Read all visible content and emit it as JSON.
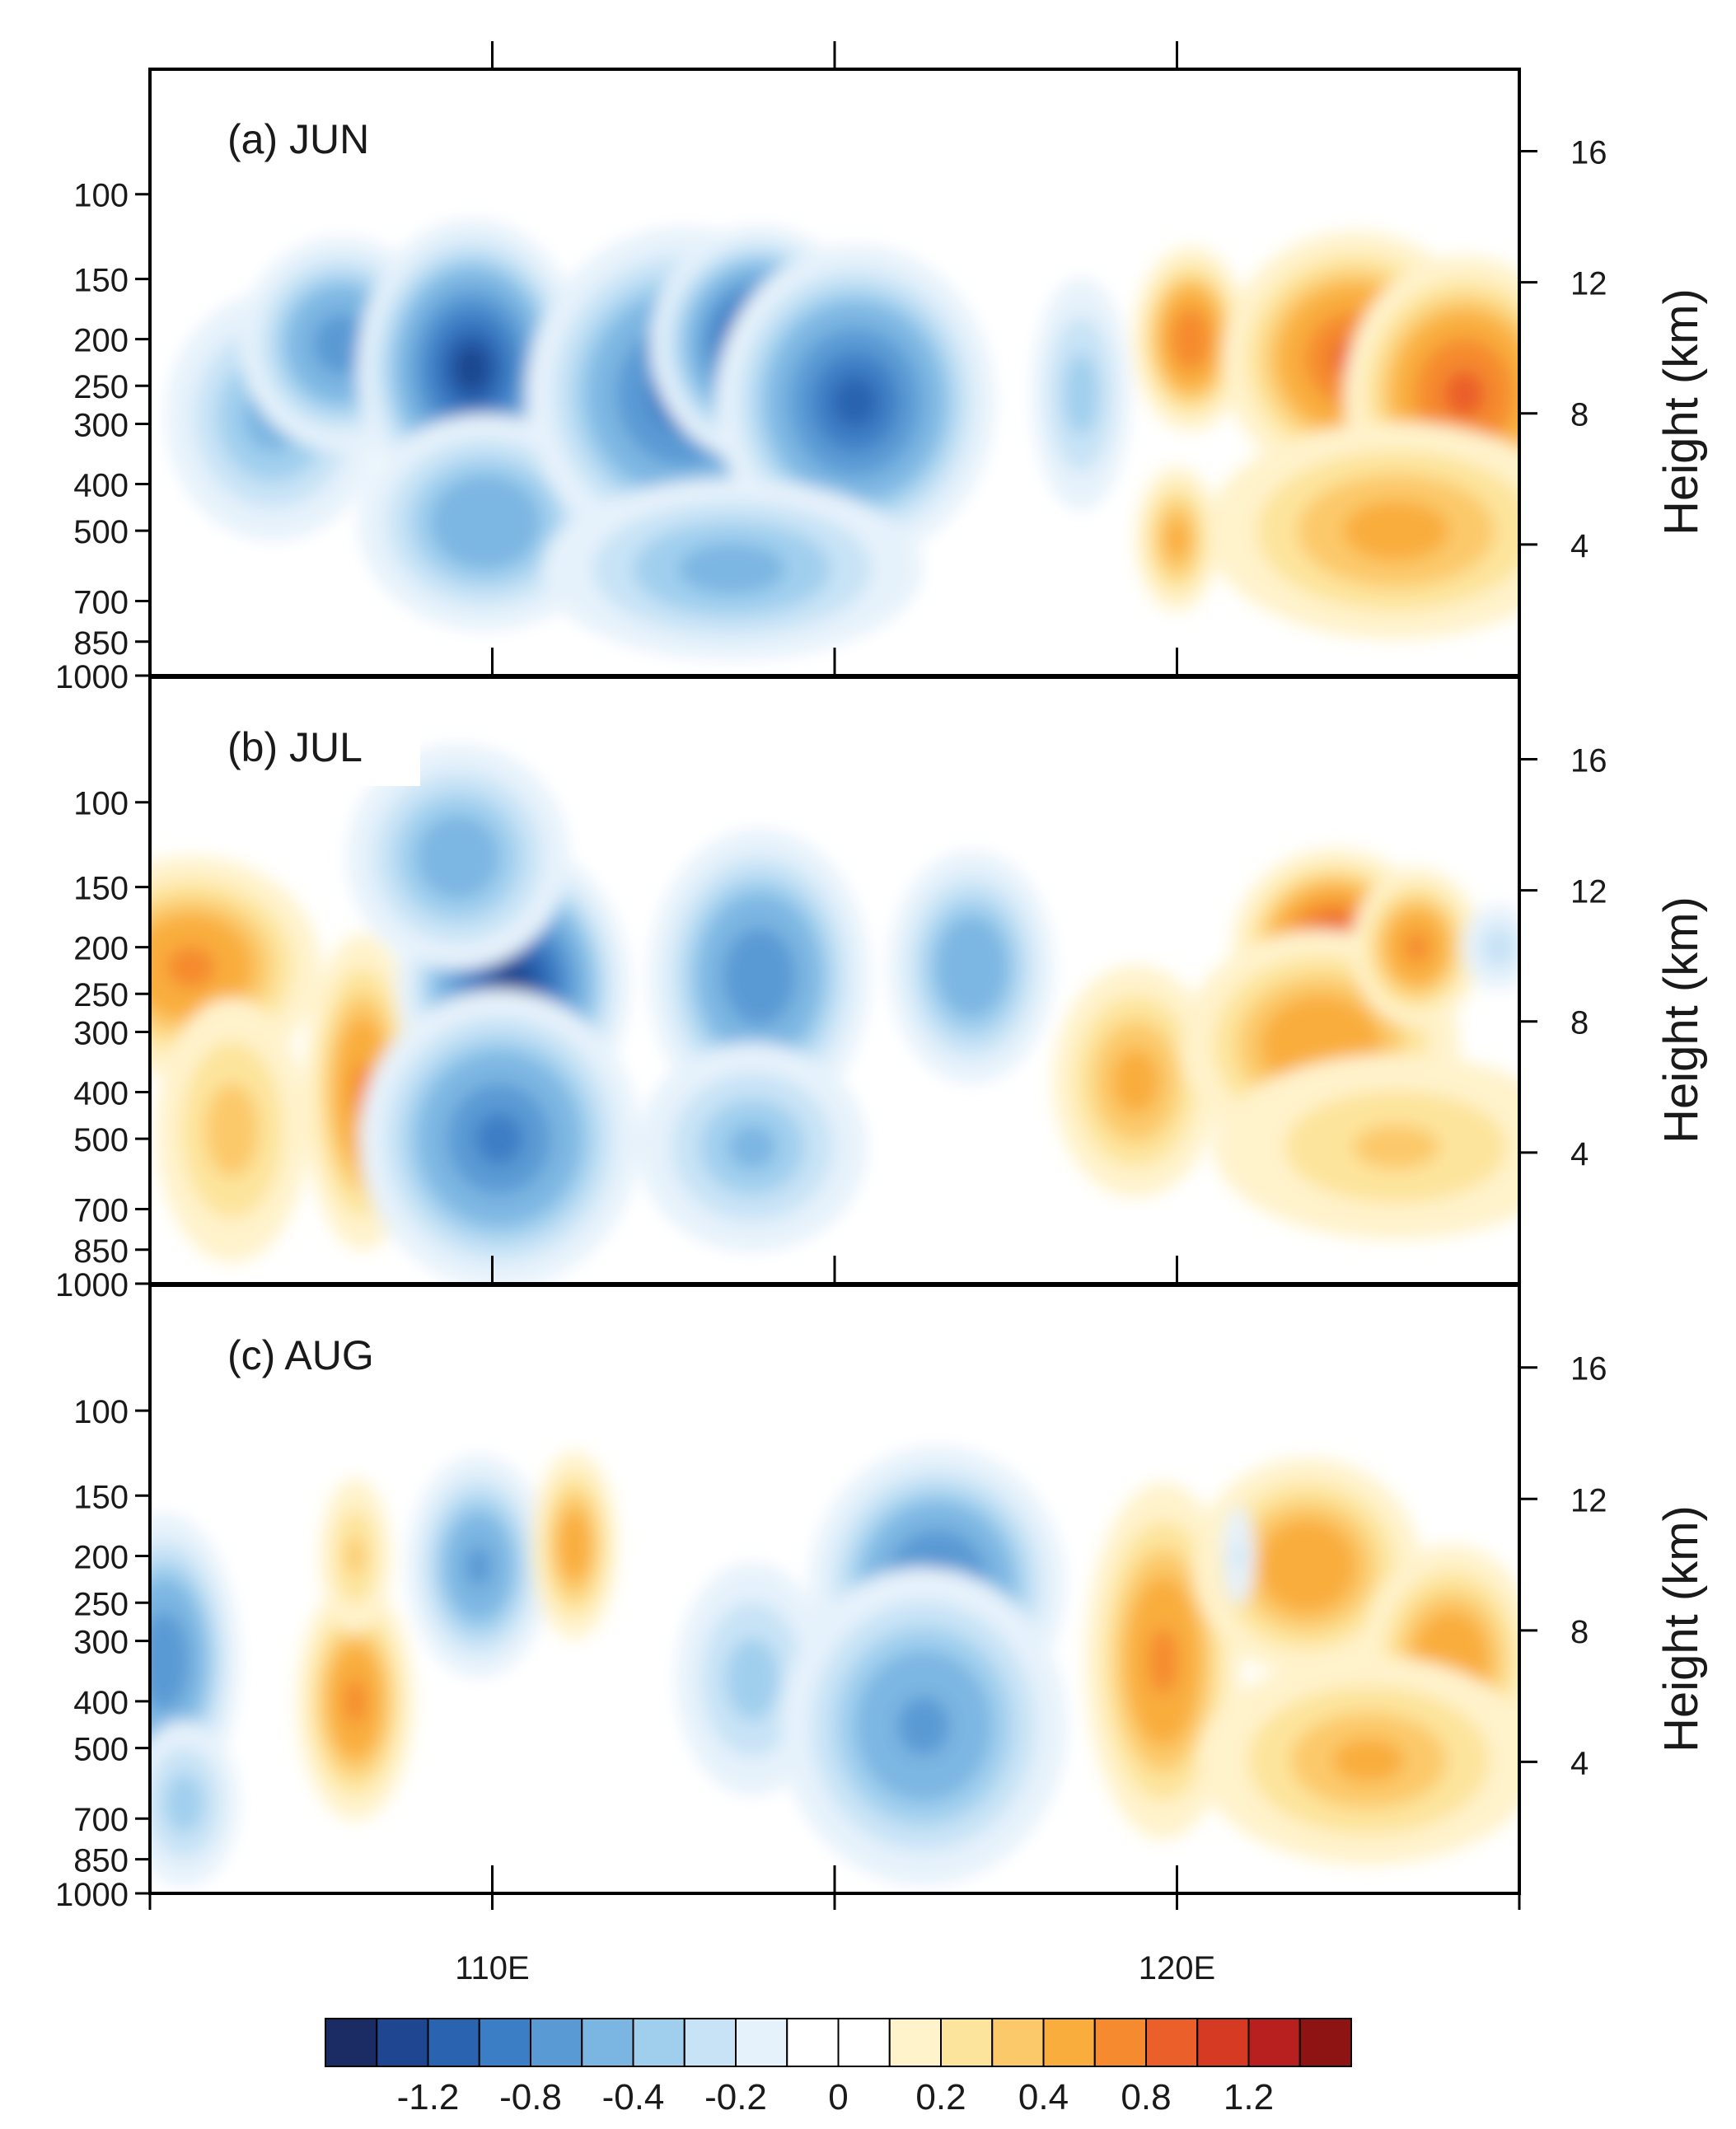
{
  "chart_data": {
    "type": "contour",
    "x_axis": {
      "range_deg_e": [
        105,
        125
      ],
      "major_ticks": [
        110,
        120
      ],
      "tick_labels": [
        "110E",
        "120E"
      ],
      "minor_ticks": [
        115
      ]
    },
    "left_axis": {
      "units": "hPa",
      "levels": [
        100,
        150,
        200,
        250,
        300,
        400,
        500,
        700,
        850,
        1000
      ],
      "tick_labels": [
        "100",
        "150",
        "200",
        "250",
        "300",
        "400",
        "500",
        "700",
        "850",
        "1000"
      ]
    },
    "right_axis": {
      "label": "Height (km)",
      "range_km": [
        0,
        18.5
      ],
      "ticks": [
        4,
        8,
        12,
        16
      ],
      "tick_labels": [
        "4",
        "8",
        "12",
        "16"
      ]
    },
    "panels": [
      {
        "label": "(a) JUN",
        "features": [
          {
            "lon": 106.8,
            "p": 290,
            "value": -0.45,
            "slon": 0.9,
            "sz": 0.34
          },
          {
            "lon": 107.8,
            "p": 205,
            "value": -0.7,
            "slon": 0.75,
            "sz": 0.26
          },
          {
            "lon": 109.7,
            "p": 230,
            "value": -1.2,
            "slon": 0.75,
            "sz": 0.32
          },
          {
            "lon": 109.9,
            "p": 480,
            "value": -0.55,
            "slon": 1.0,
            "sz": 0.28
          },
          {
            "lon": 112.8,
            "p": 260,
            "value": -0.9,
            "slon": 1.1,
            "sz": 0.38
          },
          {
            "lon": 113.9,
            "p": 205,
            "value": -1.3,
            "slon": 0.7,
            "sz": 0.25
          },
          {
            "lon": 115.3,
            "p": 270,
            "value": -1.0,
            "slon": 0.95,
            "sz": 0.35
          },
          {
            "lon": 113.5,
            "p": 600,
            "value": -0.45,
            "slon": 1.6,
            "sz": 0.25
          },
          {
            "lon": 118.6,
            "p": 260,
            "value": -0.35,
            "slon": 0.45,
            "sz": 0.35
          },
          {
            "lon": 120.2,
            "p": 200,
            "value": 0.75,
            "slon": 0.42,
            "sz": 0.22
          },
          {
            "lon": 120.0,
            "p": 520,
            "value": 0.45,
            "slon": 0.35,
            "sz": 0.2
          },
          {
            "lon": 122.6,
            "p": 220,
            "value": 0.8,
            "slon": 0.95,
            "sz": 0.3
          },
          {
            "lon": 124.2,
            "p": 260,
            "value": 0.85,
            "slon": 0.85,
            "sz": 0.32
          },
          {
            "lon": 123.2,
            "p": 500,
            "value": 0.45,
            "slon": 1.6,
            "sz": 0.3
          }
        ]
      },
      {
        "label": "(b) JUL",
        "features": [
          {
            "lon": 105.6,
            "p": 220,
            "value": 0.6,
            "slon": 1.0,
            "sz": 0.28
          },
          {
            "lon": 106.2,
            "p": 480,
            "value": 0.35,
            "slon": 0.7,
            "sz": 0.4
          },
          {
            "lon": 108.1,
            "p": 400,
            "value": 0.6,
            "slon": 0.45,
            "sz": 0.4
          },
          {
            "lon": 110.3,
            "p": 240,
            "value": -1.3,
            "slon": 0.75,
            "sz": 0.3
          },
          {
            "lon": 110.1,
            "p": 500,
            "value": -0.8,
            "slon": 1.0,
            "sz": 0.35
          },
          {
            "lon": 109.5,
            "p": 130,
            "value": -0.5,
            "slon": 0.9,
            "sz": 0.3
          },
          {
            "lon": 113.9,
            "p": 230,
            "value": -0.75,
            "slon": 0.8,
            "sz": 0.35
          },
          {
            "lon": 113.8,
            "p": 520,
            "value": -0.4,
            "slon": 1.0,
            "sz": 0.3
          },
          {
            "lon": 117.0,
            "p": 220,
            "value": -0.55,
            "slon": 0.65,
            "sz": 0.3
          },
          {
            "lon": 119.4,
            "p": 380,
            "value": 0.45,
            "slon": 0.7,
            "sz": 0.32
          },
          {
            "lon": 122.3,
            "p": 200,
            "value": 1.0,
            "slon": 0.7,
            "sz": 0.22
          },
          {
            "lon": 122.1,
            "p": 320,
            "value": 0.55,
            "slon": 1.1,
            "sz": 0.3
          },
          {
            "lon": 123.5,
            "p": 200,
            "value": 0.6,
            "slon": 0.5,
            "sz": 0.2
          },
          {
            "lon": 123.2,
            "p": 520,
            "value": 0.3,
            "slon": 1.8,
            "sz": 0.3
          },
          {
            "lon": 124.7,
            "p": 200,
            "value": -0.25,
            "slon": 0.4,
            "sz": 0.15
          }
        ]
      },
      {
        "label": "(c) AUG",
        "features": [
          {
            "lon": 105.2,
            "p": 330,
            "value": -0.75,
            "slon": 0.55,
            "sz": 0.35
          },
          {
            "lon": 105.5,
            "p": 650,
            "value": -0.35,
            "slon": 0.5,
            "sz": 0.25
          },
          {
            "lon": 108.0,
            "p": 400,
            "value": 0.6,
            "slon": 0.45,
            "sz": 0.3
          },
          {
            "lon": 108.0,
            "p": 200,
            "value": 0.3,
            "slon": 0.35,
            "sz": 0.25
          },
          {
            "lon": 109.8,
            "p": 210,
            "value": -0.6,
            "slon": 0.55,
            "sz": 0.28
          },
          {
            "lon": 111.2,
            "p": 190,
            "value": 0.5,
            "slon": 0.35,
            "sz": 0.25
          },
          {
            "lon": 113.8,
            "p": 360,
            "value": -0.35,
            "slon": 0.7,
            "sz": 0.35
          },
          {
            "lon": 116.5,
            "p": 230,
            "value": -0.85,
            "slon": 0.9,
            "sz": 0.32
          },
          {
            "lon": 116.3,
            "p": 450,
            "value": -0.6,
            "slon": 1.1,
            "sz": 0.4
          },
          {
            "lon": 119.8,
            "p": 330,
            "value": 0.6,
            "slon": 0.6,
            "sz": 0.45
          },
          {
            "lon": 121.9,
            "p": 210,
            "value": 0.55,
            "slon": 0.9,
            "sz": 0.28
          },
          {
            "lon": 124.0,
            "p": 330,
            "value": 0.55,
            "slon": 0.7,
            "sz": 0.3
          },
          {
            "lon": 122.8,
            "p": 530,
            "value": 0.4,
            "slon": 1.5,
            "sz": 0.3
          },
          {
            "lon": 120.9,
            "p": 200,
            "value": -0.2,
            "slon": 0.2,
            "sz": 0.2
          }
        ]
      }
    ],
    "colorbar": {
      "colors": [
        "#1b2c64",
        "#1f4690",
        "#2a63b0",
        "#3c7ec5",
        "#5a9ad4",
        "#7bb6e2",
        "#a0cfee",
        "#c8e3f6",
        "#e6f2fb",
        "#ffffff",
        "#ffffff",
        "#fff3cc",
        "#fde49c",
        "#fcc96a",
        "#f9ad3d",
        "#f58a2f",
        "#eb5f2b",
        "#d63a22",
        "#b81f1f",
        "#8e1414"
      ],
      "boundaries": [
        -1.4,
        -1.2,
        -1.0,
        -0.8,
        -0.6,
        -0.4,
        -0.3,
        -0.2,
        -0.1,
        0,
        0.1,
        0.2,
        0.3,
        0.4,
        0.6,
        0.8,
        1.0,
        1.2,
        1.4
      ],
      "labeled_values": [
        -1.2,
        -0.8,
        -0.4,
        -0.2,
        0,
        0.2,
        0.4,
        0.8,
        1.2
      ],
      "tick_labels": [
        "-1.2",
        "-0.8",
        "-0.4",
        "-0.2",
        "0",
        "0.2",
        "0.4",
        "0.8",
        "1.2"
      ]
    }
  }
}
